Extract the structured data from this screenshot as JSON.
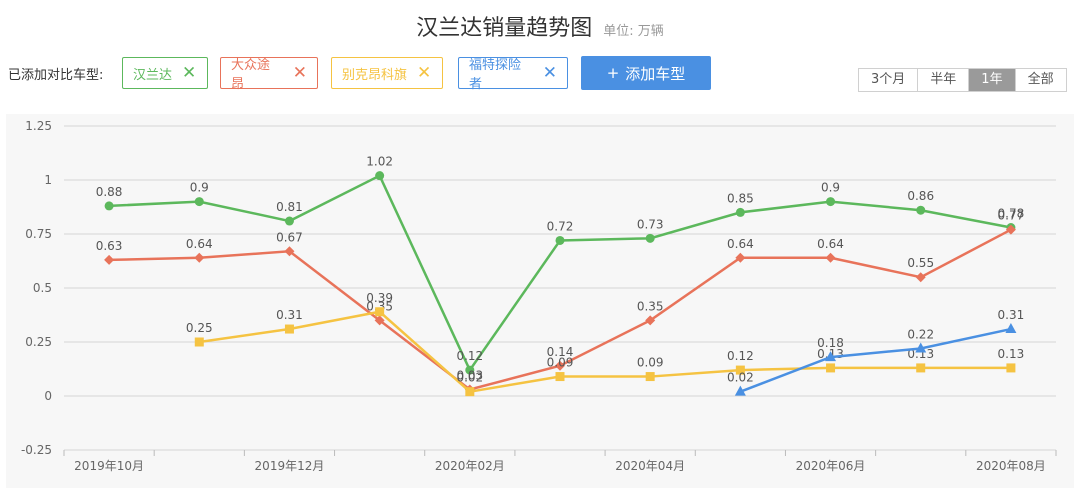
{
  "header": {
    "title": "汉兰达销量趋势图",
    "unit": "单位: 万辆"
  },
  "compare": {
    "label": "已添加对比车型:",
    "chips": [
      {
        "name": "汉兰达",
        "color": "#5cb85c"
      },
      {
        "name": "大众途昂",
        "color": "#e8735a"
      },
      {
        "name": "别克昂科旗",
        "color": "#f5c342"
      },
      {
        "name": "福特探险者",
        "color": "#4a90e2"
      }
    ],
    "close_glyph": "✕",
    "add_button": {
      "plus": "+",
      "label": "添加车型"
    }
  },
  "range": {
    "options": [
      "3个月",
      "半年",
      "1年",
      "全部"
    ],
    "active_index": 2
  },
  "chart_data": {
    "type": "line",
    "x": [
      "2019年10月",
      "2019年11月",
      "2019年12月",
      "2020年01月",
      "2020年02月",
      "2020年03月",
      "2020年04月",
      "2020年05月",
      "2020年06月",
      "2020年07月",
      "2020年08月"
    ],
    "xticks": [
      "2019年10月",
      "2019年12月",
      "2020年02月",
      "2020年04月",
      "2020年06月",
      "2020年08月"
    ],
    "yticks": [
      1.25,
      1,
      0.75,
      0.5,
      0.25,
      0,
      -0.25
    ],
    "ylim": [
      -0.25,
      1.25
    ],
    "grid": true,
    "series": [
      {
        "name": "汉兰达",
        "color": "#5cb85c",
        "marker": "circle",
        "values": [
          0.88,
          0.9,
          0.81,
          1.02,
          0.12,
          0.72,
          0.73,
          0.85,
          0.9,
          0.86,
          0.78
        ]
      },
      {
        "name": "大众途昂",
        "color": "#e8735a",
        "marker": "diamond",
        "values": [
          0.63,
          0.64,
          0.67,
          0.35,
          0.03,
          0.14,
          0.35,
          0.64,
          0.64,
          0.55,
          0.77
        ]
      },
      {
        "name": "别克昂科旗",
        "color": "#f5c342",
        "marker": "square",
        "values": [
          null,
          0.25,
          0.31,
          0.39,
          0.02,
          0.09,
          0.09,
          0.12,
          0.13,
          0.13,
          0.13
        ]
      },
      {
        "name": "福特探险者",
        "color": "#4a90e2",
        "marker": "triangle",
        "values": [
          null,
          null,
          null,
          null,
          null,
          null,
          null,
          0.02,
          0.18,
          0.22,
          0.31
        ]
      }
    ]
  }
}
